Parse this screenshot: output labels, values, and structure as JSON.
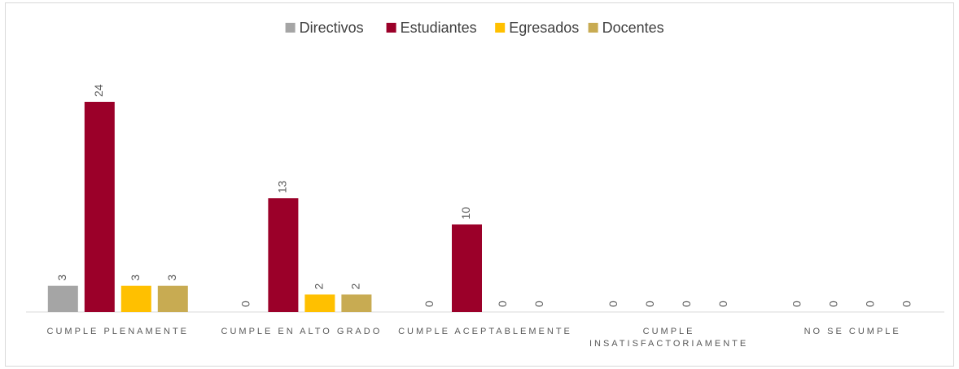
{
  "chart_data": {
    "type": "bar",
    "categories": [
      "CUMPLE PLENAMENTE",
      "CUMPLE EN ALTO GRADO",
      "CUMPLE ACEPTABLEMENTE",
      "CUMPLE INSATISFACTORIAMENTE",
      "NO SE CUMPLE"
    ],
    "series": [
      {
        "name": "Directivos",
        "color": "#a5a5a5",
        "values": [
          3,
          0,
          0,
          0,
          0
        ]
      },
      {
        "name": "Estudiantes",
        "color": "#9b0029",
        "values": [
          24,
          13,
          10,
          0,
          0
        ]
      },
      {
        "name": "Egresados",
        "color": "#ffc000",
        "values": [
          3,
          2,
          0,
          0,
          0
        ]
      },
      {
        "name": "Docentes",
        "color": "#c8ab52",
        "values": [
          3,
          2,
          0,
          0,
          0
        ]
      }
    ],
    "legend": "top"
  }
}
